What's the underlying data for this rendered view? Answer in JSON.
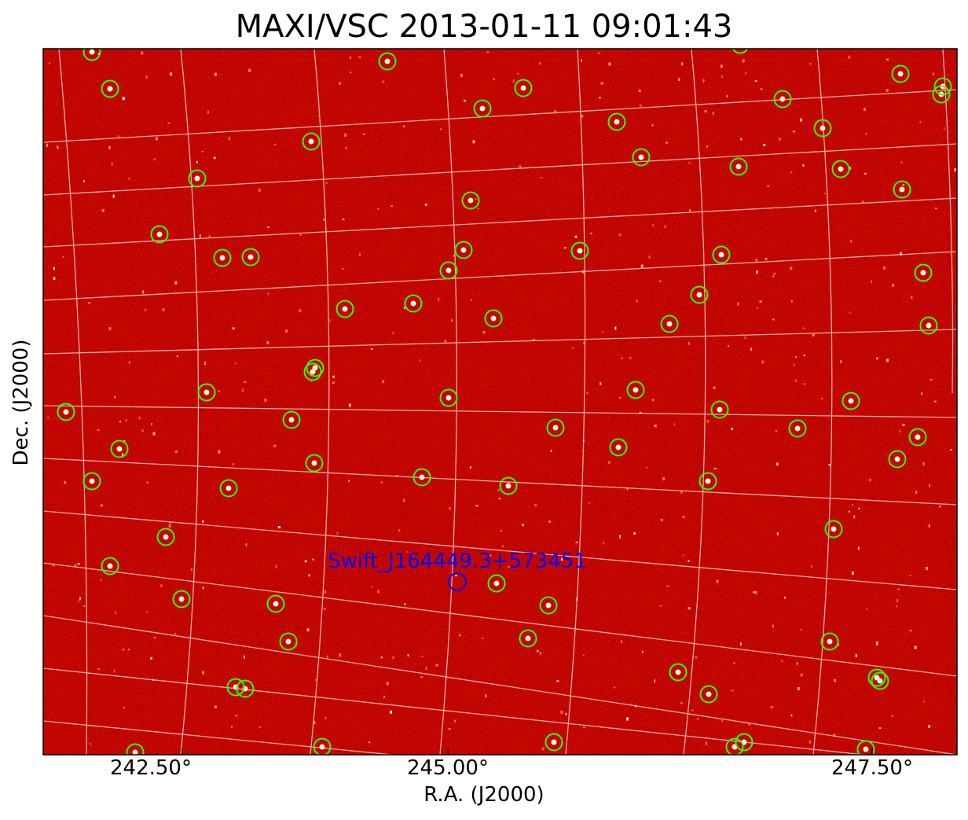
{
  "title": "MAXI/VSC 2013-01-11 09:01:43",
  "xlabel": "R.A. (J2000)",
  "ylabel": "Dec. (J2000)",
  "x_ticks": [
    "242.50°",
    "245.00°",
    "247.50°"
  ],
  "target": {
    "label": "Swift_J164449.3+573451"
  },
  "colors": {
    "background": "#bf0000",
    "source_circle": "#33ff00",
    "target": "#0000ff",
    "grid": "#f0c8c8"
  }
}
